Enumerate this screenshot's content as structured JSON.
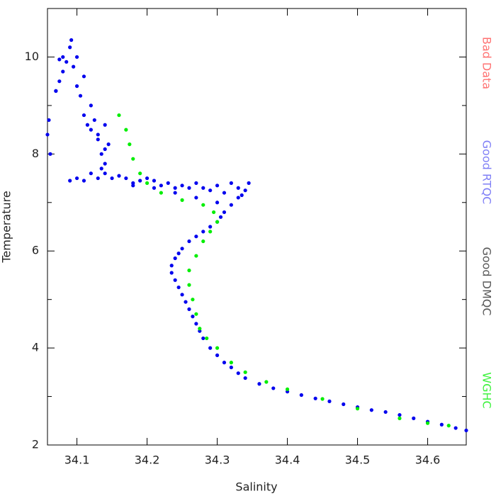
{
  "chart_data": {
    "type": "scatter",
    "x_label": "Salinity",
    "y_label": "Temperature",
    "xlim": [
      34.058,
      34.655
    ],
    "ylim": [
      2,
      11
    ],
    "xticks": [
      34.1,
      34.2,
      34.3,
      34.4,
      34.5,
      34.6
    ],
    "yticks": [
      2,
      4,
      6,
      8,
      10
    ],
    "yminorticks": [
      3,
      5,
      7,
      9
    ],
    "series": [
      {
        "name": "Bad Data",
        "color": "#ff4444",
        "x": [],
        "values": []
      },
      {
        "name": "Good RTQC",
        "color": "#0000ee",
        "x": [
          34.655,
          34.64,
          34.62,
          34.6,
          34.58,
          34.56,
          34.54,
          34.52,
          34.5,
          34.48,
          34.46,
          34.44,
          34.42,
          34.4,
          34.38,
          34.36,
          34.34,
          34.33,
          34.32,
          34.31,
          34.3,
          34.29,
          34.28,
          34.275,
          34.27,
          34.265,
          34.26,
          34.255,
          34.25,
          34.245,
          34.24,
          34.235,
          34.235,
          34.24,
          34.245,
          34.25,
          34.26,
          34.27,
          34.28,
          34.29,
          34.3,
          34.305,
          34.31,
          34.32,
          34.33,
          34.34,
          34.345,
          34.33,
          34.32,
          34.31,
          34.3,
          34.29,
          34.28,
          34.27,
          34.26,
          34.25,
          34.24,
          34.23,
          34.22,
          34.21,
          34.2,
          34.19,
          34.18,
          34.17,
          34.16,
          34.15,
          34.14,
          34.13,
          34.12,
          34.11,
          34.335,
          34.3,
          34.27,
          34.24,
          34.21,
          34.18,
          34.14,
          34.135,
          34.145,
          34.13,
          34.14,
          34.135,
          34.14,
          34.13,
          34.12,
          34.125,
          34.115,
          34.11,
          34.12,
          34.105,
          34.1,
          34.11,
          34.095,
          34.1,
          34.09,
          34.092,
          34.085,
          34.08,
          34.075,
          34.07,
          34.075,
          34.08,
          34.07,
          34.06,
          34.058,
          34.062,
          34.09,
          34.1
        ],
        "values": [
          2.3,
          2.35,
          2.42,
          2.48,
          2.55,
          2.62,
          2.68,
          2.72,
          2.78,
          2.84,
          2.9,
          2.96,
          3.03,
          3.1,
          3.17,
          3.26,
          3.38,
          3.48,
          3.6,
          3.7,
          3.85,
          4.0,
          4.2,
          4.35,
          4.5,
          4.65,
          4.8,
          4.95,
          5.1,
          5.25,
          5.4,
          5.55,
          5.7,
          5.85,
          5.95,
          6.05,
          6.2,
          6.3,
          6.4,
          6.5,
          6.6,
          6.7,
          6.8,
          6.95,
          7.1,
          7.25,
          7.4,
          7.3,
          7.4,
          7.2,
          7.35,
          7.25,
          7.3,
          7.4,
          7.3,
          7.35,
          7.3,
          7.4,
          7.35,
          7.45,
          7.5,
          7.45,
          7.4,
          7.5,
          7.55,
          7.5,
          7.6,
          7.5,
          7.6,
          7.45,
          7.15,
          7.0,
          7.1,
          7.2,
          7.3,
          7.35,
          7.8,
          8.0,
          8.2,
          8.4,
          8.6,
          7.7,
          8.1,
          8.3,
          8.5,
          8.7,
          8.6,
          8.8,
          9.0,
          9.2,
          9.4,
          9.6,
          9.8,
          10.0,
          10.2,
          10.35,
          9.9,
          10.0,
          9.95,
          9.3,
          9.5,
          9.7,
          9.3,
          8.7,
          8.4,
          8.0,
          7.45,
          7.5
        ]
      },
      {
        "name": "Good DMQC",
        "color": "#222222",
        "x": [],
        "values": []
      },
      {
        "name": "WGHC",
        "color": "#00ee00",
        "x": [
          34.16,
          34.17,
          34.175,
          34.18,
          34.19,
          34.2,
          34.22,
          34.25,
          34.28,
          34.295,
          34.3,
          34.29,
          34.28,
          34.27,
          34.26,
          34.26,
          34.265,
          34.27,
          34.275,
          34.285,
          34.3,
          34.32,
          34.34,
          34.37,
          34.4,
          34.45,
          34.5,
          34.56,
          34.6,
          34.63
        ],
        "values": [
          8.8,
          8.5,
          8.2,
          7.9,
          7.6,
          7.4,
          7.2,
          7.05,
          6.95,
          6.8,
          6.6,
          6.4,
          6.2,
          5.9,
          5.6,
          5.3,
          5.0,
          4.7,
          4.4,
          4.2,
          4.0,
          3.7,
          3.5,
          3.3,
          3.15,
          2.95,
          2.75,
          2.55,
          2.45,
          2.4
        ]
      }
    ]
  }
}
